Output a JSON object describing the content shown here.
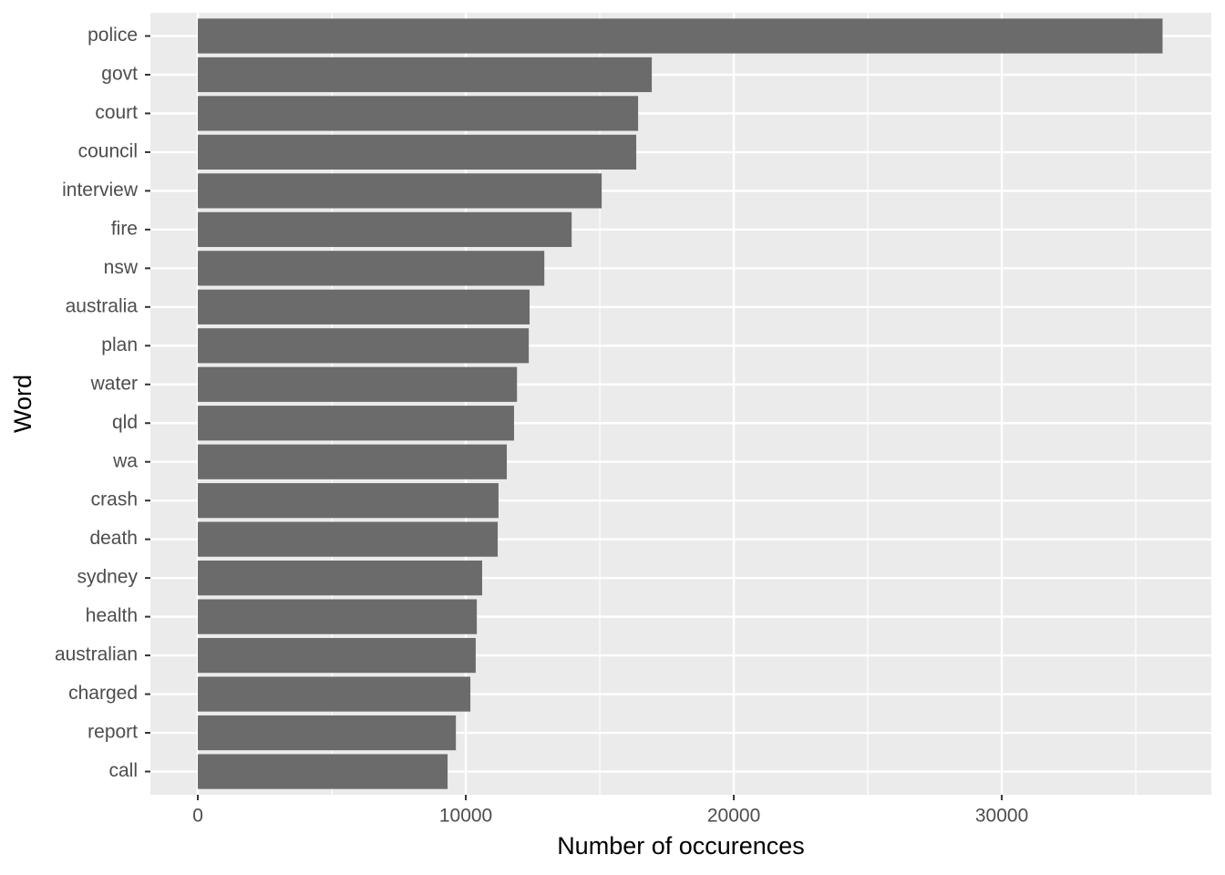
{
  "chart_data": {
    "type": "barh",
    "x_label": "Number of occurences",
    "y_label": "Word",
    "categories": [
      "police",
      "govt",
      "court",
      "council",
      "interview",
      "fire",
      "nsw",
      "australia",
      "plan",
      "water",
      "qld",
      "wa",
      "crash",
      "death",
      "sydney",
      "health",
      "australian",
      "charged",
      "report",
      "call"
    ],
    "values": [
      36000,
      16940,
      16430,
      16360,
      15070,
      13950,
      12930,
      12380,
      12350,
      11910,
      11800,
      11530,
      11220,
      11190,
      10610,
      10410,
      10370,
      10170,
      9630,
      9320
    ],
    "color": "#6b6b6b",
    "xlim": [
      -1770,
      37820
    ],
    "xticks": [
      0,
      10000,
      20000,
      30000
    ],
    "grid": true
  }
}
